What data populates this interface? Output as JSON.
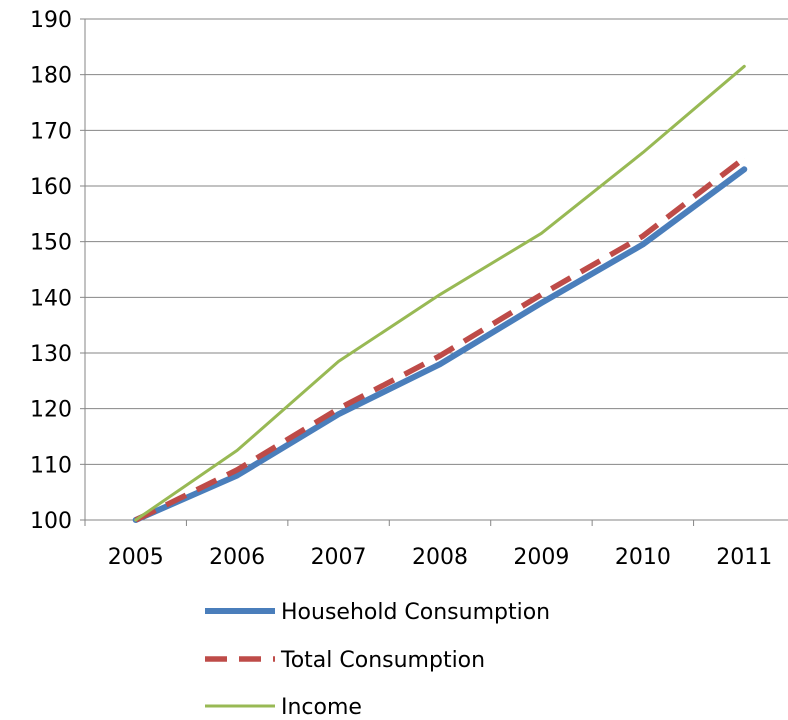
{
  "chart_data": {
    "type": "line",
    "categories": [
      "2005",
      "2006",
      "2007",
      "2008",
      "2009",
      "2010",
      "2011"
    ],
    "ylim": [
      100,
      190
    ],
    "yticks": [
      100,
      110,
      120,
      130,
      140,
      150,
      160,
      170,
      180,
      190
    ],
    "grid": true,
    "legend_position": "bottom",
    "series": [
      {
        "name": "Household Consumption",
        "values": [
          100,
          108,
          119,
          128,
          139,
          149.5,
          163
        ],
        "color": "#4a7ebb",
        "style": "solid-thick"
      },
      {
        "name": "Total Consumption",
        "values": [
          100,
          109,
          120,
          129.5,
          140.5,
          151,
          165
        ],
        "color": "#be4b48",
        "style": "dashed-thick"
      },
      {
        "name": "Income",
        "values": [
          100,
          112.5,
          128.5,
          140.5,
          151.5,
          166,
          181.5
        ],
        "color": "#98b954",
        "style": "solid-thin"
      }
    ]
  }
}
